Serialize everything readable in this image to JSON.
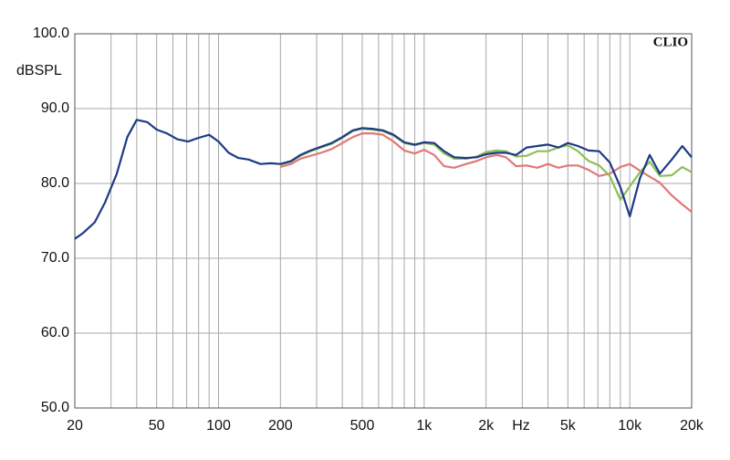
{
  "chart_data": {
    "type": "line",
    "ylabel": "dBSPL",
    "xlabel": "Hz",
    "annotation": "CLIO",
    "log_x": true,
    "grid": true,
    "xlim": [
      20,
      20000
    ],
    "ylim": [
      50,
      100
    ],
    "xticks": [
      20,
      50,
      100,
      200,
      500,
      {
        "value": 1000,
        "label": "1k"
      },
      {
        "value": 2000,
        "label": "2k"
      },
      {
        "value": 5000,
        "label": "5k"
      },
      {
        "value": 10000,
        "label": "10k"
      },
      {
        "value": 20000,
        "label": "20k"
      }
    ],
    "xgrid": [
      30,
      40,
      60,
      70,
      80,
      90,
      300,
      400,
      600,
      700,
      800,
      900,
      3000,
      4000,
      6000,
      7000,
      8000,
      9000
    ],
    "yticks": [
      {
        "value": 50,
        "label": "50.0"
      },
      {
        "value": 60,
        "label": "60.0"
      },
      {
        "value": 70,
        "label": "70.0"
      },
      {
        "value": 80,
        "label": "80.0"
      },
      {
        "value": 90,
        "label": "90.0"
      },
      {
        "value": 100,
        "label": "100.0"
      }
    ],
    "x": [
      20,
      22,
      25,
      28,
      32,
      36,
      40,
      45,
      50,
      56,
      63,
      71,
      80,
      90,
      100,
      112,
      125,
      140,
      160,
      180,
      200,
      225,
      250,
      280,
      315,
      355,
      400,
      450,
      500,
      560,
      630,
      710,
      800,
      900,
      1000,
      1120,
      1250,
      1400,
      1600,
      1800,
      2000,
      2250,
      2500,
      2800,
      3150,
      3550,
      4000,
      4500,
      5000,
      5600,
      6300,
      7100,
      8000,
      9000,
      10000,
      11200,
      12500,
      14000,
      16000,
      18000,
      20000
    ],
    "series": [
      {
        "color": "#e07878",
        "values": [
          null,
          null,
          null,
          null,
          null,
          null,
          null,
          null,
          null,
          null,
          null,
          null,
          null,
          null,
          null,
          null,
          null,
          null,
          null,
          null,
          82.2,
          82.6,
          83.3,
          83.7,
          84.1,
          84.6,
          85.4,
          86.2,
          86.7,
          86.7,
          86.5,
          85.6,
          84.4,
          84.0,
          84.5,
          83.8,
          82.3,
          82.1,
          82.6,
          83.0,
          83.5,
          83.8,
          83.5,
          82.3,
          82.4,
          82.1,
          82.6,
          82.1,
          82.4,
          82.4,
          81.8,
          81.0,
          81.3,
          82.2,
          82.6,
          81.7,
          80.9,
          80.1,
          78.4,
          77.2,
          76.2
        ]
      },
      {
        "color": "#8dbf5c",
        "values": [
          null,
          null,
          null,
          null,
          null,
          null,
          null,
          null,
          null,
          null,
          null,
          null,
          null,
          null,
          null,
          null,
          null,
          null,
          null,
          null,
          82.5,
          82.9,
          83.7,
          84.3,
          84.8,
          85.3,
          86.1,
          87.0,
          87.3,
          87.2,
          87.0,
          86.4,
          85.4,
          85.1,
          85.4,
          85.2,
          84.0,
          83.3,
          83.3,
          83.6,
          84.2,
          84.4,
          84.3,
          83.6,
          83.7,
          84.3,
          84.3,
          84.8,
          85.1,
          84.3,
          83.0,
          82.4,
          81.0,
          77.8,
          79.6,
          81.5,
          82.9,
          81.0,
          81.1,
          82.2,
          81.5
        ]
      },
      {
        "color": "#1f3a85",
        "values": [
          72.6,
          73.4,
          74.8,
          77.4,
          81.3,
          86.2,
          88.5,
          88.2,
          87.2,
          86.7,
          85.9,
          85.6,
          86.1,
          86.5,
          85.6,
          84.1,
          83.4,
          83.2,
          82.6,
          82.7,
          82.6,
          83.0,
          83.8,
          84.4,
          84.9,
          85.4,
          86.2,
          87.1,
          87.4,
          87.3,
          87.1,
          86.5,
          85.5,
          85.2,
          85.5,
          85.4,
          84.3,
          83.5,
          83.4,
          83.5,
          83.9,
          84.1,
          84.1,
          83.8,
          84.8,
          85.0,
          85.2,
          84.8,
          85.4,
          85.0,
          84.4,
          84.3,
          82.8,
          79.5,
          75.6,
          80.7,
          83.8,
          81.3,
          83.2,
          85.0,
          83.5
        ]
      }
    ]
  }
}
